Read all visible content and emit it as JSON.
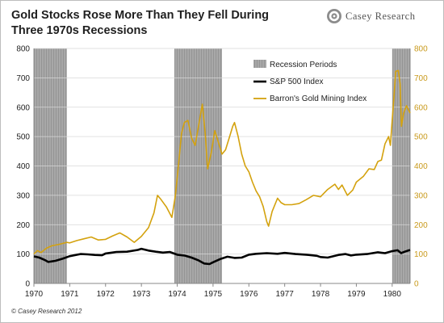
{
  "title": "Gold Stocks Rose More Than They Fell During Three 1970s Recessions",
  "brand": "Casey Research",
  "brand_logo_icon": "bullseye-swirl-icon",
  "copyright": "© Casey Research 2012",
  "colors": {
    "recession": "#a8a8a8",
    "sp500": "#000000",
    "gold": "#d4a20e",
    "left_axis_text": "#222222",
    "right_axis_text": "#c99a1c"
  },
  "chart_data": {
    "type": "line",
    "x_ticks": [
      "1970",
      "1971",
      "1972",
      "1973",
      "1974",
      "1975",
      "1976",
      "1977",
      "1978",
      "1979",
      "1980"
    ],
    "xlim": [
      1970,
      1980.5
    ],
    "y_left_ticks": [
      "0",
      "100",
      "200",
      "300",
      "400",
      "500",
      "600",
      "700",
      "800"
    ],
    "y_right_ticks": [
      "0",
      "100",
      "200",
      "300",
      "400",
      "500",
      "600",
      "700",
      "800"
    ],
    "ylim": [
      0,
      800
    ],
    "grid": true,
    "legend_position": "top-center",
    "legend": {
      "recession": "Recession Periods",
      "sp500": "S&P 500 Index",
      "gold": "Barron's Gold Mining Index"
    },
    "recessions": [
      [
        1970.0,
        1970.92
      ],
      [
        1973.92,
        1975.25
      ],
      [
        1980.0,
        1980.5
      ]
    ],
    "series": [
      {
        "name": "S&P 500 Index",
        "points": [
          [
            1970.0,
            92
          ],
          [
            1970.15,
            88
          ],
          [
            1970.3,
            80
          ],
          [
            1970.4,
            73
          ],
          [
            1970.5,
            75
          ],
          [
            1970.6,
            77
          ],
          [
            1970.8,
            84
          ],
          [
            1971.0,
            93
          ],
          [
            1971.3,
            100
          ],
          [
            1971.5,
            99
          ],
          [
            1971.7,
            97
          ],
          [
            1971.9,
            96
          ],
          [
            1972.0,
            102
          ],
          [
            1972.3,
            107
          ],
          [
            1972.6,
            108
          ],
          [
            1972.9,
            114
          ],
          [
            1973.0,
            118
          ],
          [
            1973.2,
            112
          ],
          [
            1973.4,
            108
          ],
          [
            1973.6,
            105
          ],
          [
            1973.8,
            107
          ],
          [
            1974.0,
            98
          ],
          [
            1974.2,
            95
          ],
          [
            1974.4,
            88
          ],
          [
            1974.6,
            78
          ],
          [
            1974.75,
            68
          ],
          [
            1974.9,
            66
          ],
          [
            1975.0,
            72
          ],
          [
            1975.2,
            83
          ],
          [
            1975.4,
            91
          ],
          [
            1975.6,
            87
          ],
          [
            1975.8,
            88
          ],
          [
            1976.0,
            98
          ],
          [
            1976.2,
            101
          ],
          [
            1976.5,
            103
          ],
          [
            1976.8,
            101
          ],
          [
            1977.0,
            104
          ],
          [
            1977.3,
            100
          ],
          [
            1977.6,
            98
          ],
          [
            1977.9,
            94
          ],
          [
            1978.0,
            90
          ],
          [
            1978.2,
            88
          ],
          [
            1978.5,
            97
          ],
          [
            1978.7,
            100
          ],
          [
            1978.85,
            95
          ],
          [
            1979.0,
            98
          ],
          [
            1979.3,
            100
          ],
          [
            1979.6,
            106
          ],
          [
            1979.8,
            103
          ],
          [
            1980.0,
            110
          ],
          [
            1980.15,
            113
          ],
          [
            1980.25,
            103
          ],
          [
            1980.35,
            108
          ],
          [
            1980.5,
            114
          ]
        ]
      },
      {
        "name": "Barron's Gold Mining Index",
        "points": [
          [
            1970.0,
            100
          ],
          [
            1970.1,
            112
          ],
          [
            1970.2,
            105
          ],
          [
            1970.35,
            120
          ],
          [
            1970.5,
            128
          ],
          [
            1970.7,
            133
          ],
          [
            1970.92,
            140
          ],
          [
            1971.0,
            138
          ],
          [
            1971.2,
            146
          ],
          [
            1971.4,
            152
          ],
          [
            1971.6,
            158
          ],
          [
            1971.8,
            148
          ],
          [
            1972.0,
            150
          ],
          [
            1972.2,
            162
          ],
          [
            1972.4,
            172
          ],
          [
            1972.6,
            158
          ],
          [
            1972.8,
            140
          ],
          [
            1973.0,
            160
          ],
          [
            1973.2,
            190
          ],
          [
            1973.35,
            240
          ],
          [
            1973.45,
            300
          ],
          [
            1973.55,
            285
          ],
          [
            1973.7,
            260
          ],
          [
            1973.85,
            225
          ],
          [
            1973.95,
            300
          ],
          [
            1974.05,
            420
          ],
          [
            1974.12,
            510
          ],
          [
            1974.2,
            548
          ],
          [
            1974.3,
            555
          ],
          [
            1974.4,
            495
          ],
          [
            1974.5,
            470
          ],
          [
            1974.6,
            540
          ],
          [
            1974.7,
            610
          ],
          [
            1974.78,
            515
          ],
          [
            1974.85,
            390
          ],
          [
            1974.95,
            445
          ],
          [
            1975.05,
            520
          ],
          [
            1975.15,
            480
          ],
          [
            1975.25,
            440
          ],
          [
            1975.35,
            455
          ],
          [
            1975.45,
            495
          ],
          [
            1975.55,
            535
          ],
          [
            1975.6,
            548
          ],
          [
            1975.7,
            500
          ],
          [
            1975.8,
            440
          ],
          [
            1975.9,
            400
          ],
          [
            1976.0,
            380
          ],
          [
            1976.1,
            345
          ],
          [
            1976.2,
            315
          ],
          [
            1976.3,
            295
          ],
          [
            1976.4,
            262
          ],
          [
            1976.5,
            210
          ],
          [
            1976.55,
            195
          ],
          [
            1976.65,
            245
          ],
          [
            1976.8,
            290
          ],
          [
            1976.9,
            275
          ],
          [
            1977.0,
            268
          ],
          [
            1977.2,
            268
          ],
          [
            1977.4,
            272
          ],
          [
            1977.6,
            285
          ],
          [
            1977.8,
            300
          ],
          [
            1978.0,
            295
          ],
          [
            1978.2,
            320
          ],
          [
            1978.4,
            338
          ],
          [
            1978.5,
            320
          ],
          [
            1978.6,
            335
          ],
          [
            1978.75,
            300
          ],
          [
            1978.9,
            318
          ],
          [
            1979.0,
            345
          ],
          [
            1979.2,
            365
          ],
          [
            1979.35,
            390
          ],
          [
            1979.5,
            388
          ],
          [
            1979.6,
            415
          ],
          [
            1979.7,
            420
          ],
          [
            1979.8,
            475
          ],
          [
            1979.9,
            500
          ],
          [
            1979.95,
            470
          ],
          [
            1980.0,
            555
          ],
          [
            1980.05,
            635
          ],
          [
            1980.1,
            722
          ],
          [
            1980.17,
            725
          ],
          [
            1980.22,
            680
          ],
          [
            1980.26,
            535
          ],
          [
            1980.32,
            580
          ],
          [
            1980.4,
            605
          ],
          [
            1980.5,
            580
          ]
        ]
      }
    ]
  }
}
